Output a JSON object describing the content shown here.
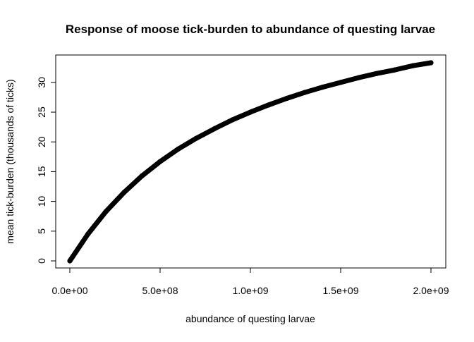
{
  "chart_data": {
    "type": "line",
    "title": "Response of moose tick-burden to abundance of questing larvae",
    "xlabel": "abundance of questing larvae",
    "ylabel": "mean tick-burden (thousands of ticks)",
    "xlim": [
      0,
      2000000000
    ],
    "ylim": [
      0,
      33.3
    ],
    "x_ticks": [
      0,
      500000000,
      1000000000,
      1500000000,
      2000000000
    ],
    "x_tick_labels": [
      "0.0e+00",
      "5.0e+08",
      "1.0e+09",
      "1.5e+09",
      "2.0e+09"
    ],
    "y_ticks": [
      0,
      5,
      10,
      15,
      20,
      25,
      30
    ],
    "y_tick_labels": [
      "0",
      "5",
      "10",
      "15",
      "20",
      "25",
      "30"
    ],
    "grid": false,
    "series": [
      {
        "color": "#000000",
        "marker": "filled-circle",
        "x": [
          0,
          100000000,
          200000000,
          300000000,
          400000000,
          500000000,
          600000000,
          700000000,
          800000000,
          900000000,
          1000000000,
          1100000000,
          1200000000,
          1300000000,
          1400000000,
          1500000000,
          1600000000,
          1700000000,
          1800000000,
          1900000000,
          2000000000
        ],
        "y": [
          0,
          4.5,
          8.3,
          11.5,
          14.3,
          16.7,
          18.8,
          20.6,
          22.2,
          23.7,
          25.0,
          26.2,
          27.3,
          28.3,
          29.2,
          30.0,
          30.8,
          31.5,
          32.1,
          32.8,
          33.3
        ]
      }
    ]
  }
}
